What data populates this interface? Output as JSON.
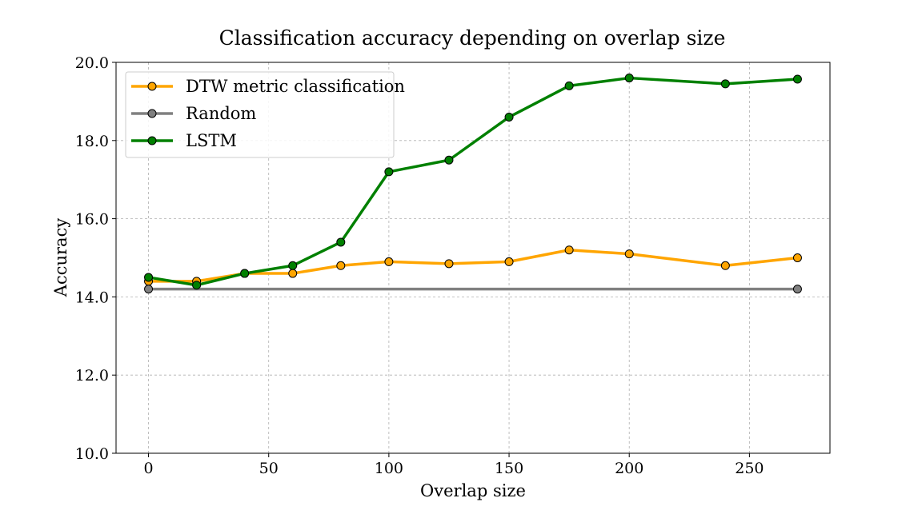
{
  "chart_data": {
    "type": "line",
    "title": "Classification accuracy depending on overlap size",
    "xlabel": "Overlap size",
    "ylabel": "Accuracy",
    "xlim": [
      -13.5,
      283.5
    ],
    "ylim": [
      10.0,
      20.0
    ],
    "xticks": [
      0,
      50,
      100,
      150,
      200,
      250
    ],
    "yticks": [
      10.0,
      12.0,
      14.0,
      16.0,
      18.0,
      20.0
    ],
    "xtick_labels": [
      "0",
      "50",
      "100",
      "150",
      "200",
      "250"
    ],
    "ytick_labels": [
      "10.0",
      "12.0",
      "14.0",
      "16.0",
      "18.0",
      "20.0"
    ],
    "grid": true,
    "legend_position": "upper-left",
    "series": [
      {
        "name": "DTW metric classification",
        "color": "#ffa500",
        "x": [
          0,
          20,
          40,
          60,
          80,
          100,
          125,
          150,
          175,
          200,
          240,
          270
        ],
        "values": [
          14.4,
          14.4,
          14.6,
          14.6,
          14.8,
          14.9,
          14.85,
          14.9,
          15.2,
          15.1,
          14.8,
          15.0
        ]
      },
      {
        "name": "Random",
        "color": "#808080",
        "x": [
          0,
          270
        ],
        "values": [
          14.2,
          14.2
        ]
      },
      {
        "name": "LSTM",
        "color": "#008000",
        "x": [
          0,
          20,
          40,
          60,
          80,
          100,
          125,
          150,
          175,
          200,
          240,
          270
        ],
        "values": [
          14.5,
          14.3,
          14.6,
          14.8,
          15.4,
          17.2,
          17.5,
          18.6,
          19.4,
          19.6,
          19.45,
          19.57
        ]
      }
    ]
  }
}
